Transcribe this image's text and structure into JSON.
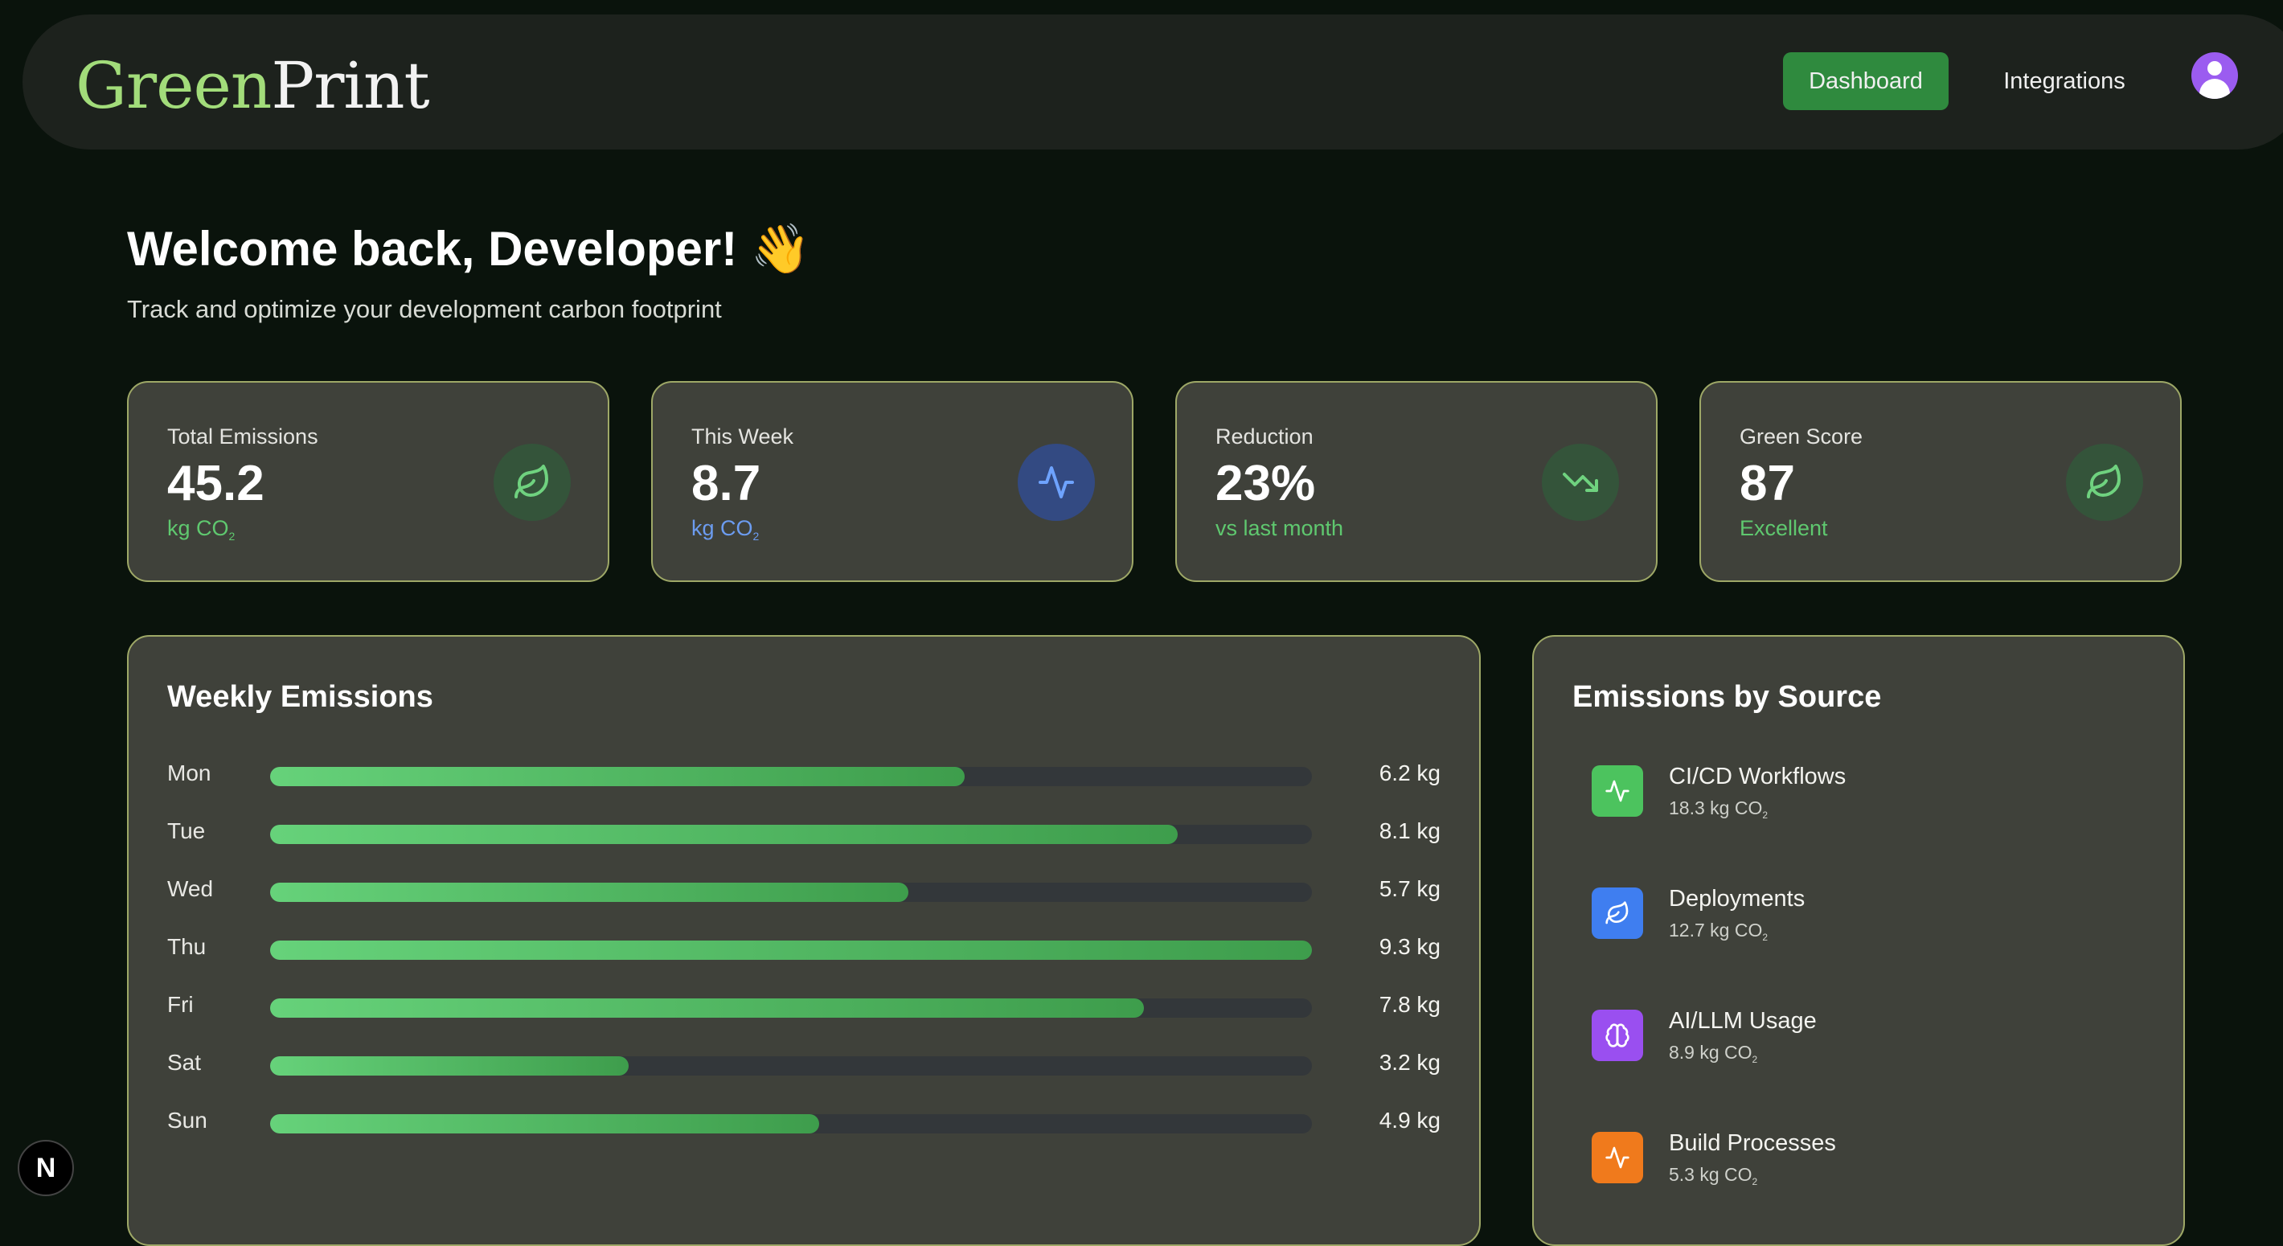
{
  "brand": {
    "part1": "Green",
    "part2": "Print"
  },
  "nav": {
    "dashboard": "Dashboard",
    "integrations": "Integrations"
  },
  "welcome": {
    "title": "Welcome back, Developer! 👋",
    "subtitle": "Track and optimize your development carbon footprint"
  },
  "stats": [
    {
      "label": "Total Emissions",
      "value": "45.2",
      "unit": "kg CO",
      "unit_sub": "2",
      "unit_color": "#5fc86f",
      "icon": "leaf-icon",
      "icon_bg": "#34543a",
      "icon_color": "#6fd27f"
    },
    {
      "label": "This Week",
      "value": "8.7",
      "unit": "kg CO",
      "unit_sub": "2",
      "unit_color": "#6c9cf0",
      "icon": "activity-icon",
      "icon_bg": "#334a82",
      "icon_color": "#6ea3ff"
    },
    {
      "label": "Reduction",
      "value": "23%",
      "unit": "vs last month",
      "unit_sub": "",
      "unit_color": "#5fc86f",
      "icon": "trending-down-icon",
      "icon_bg": "#34543a",
      "icon_color": "#6fd27f"
    },
    {
      "label": "Green Score",
      "value": "87",
      "unit": "Excellent",
      "unit_sub": "",
      "unit_color": "#5fc86f",
      "icon": "leaf-icon",
      "icon_bg": "#34543a",
      "icon_color": "#6fd27f"
    }
  ],
  "weekly": {
    "title": "Weekly Emissions",
    "max": 9.3,
    "days": [
      {
        "day": "Mon",
        "value": 6.2,
        "label": "6.2 kg"
      },
      {
        "day": "Tue",
        "value": 8.1,
        "label": "8.1 kg"
      },
      {
        "day": "Wed",
        "value": 5.7,
        "label": "5.7 kg"
      },
      {
        "day": "Thu",
        "value": 9.3,
        "label": "9.3 kg"
      },
      {
        "day": "Fri",
        "value": 7.8,
        "label": "7.8 kg"
      },
      {
        "day": "Sat",
        "value": 3.2,
        "label": "3.2 kg"
      },
      {
        "day": "Sun",
        "value": 4.9,
        "label": "4.9 kg"
      }
    ]
  },
  "sources": {
    "title": "Emissions by Source",
    "items": [
      {
        "name": "CI/CD Workflows",
        "amount": "18.3 kg CO",
        "sub": "2",
        "color": "#4cc35e",
        "icon": "activity-icon"
      },
      {
        "name": "Deployments",
        "amount": "12.7 kg CO",
        "sub": "2",
        "color": "#3f7ef0",
        "icon": "leaf-icon"
      },
      {
        "name": "AI/LLM Usage",
        "amount": "8.9 kg CO",
        "sub": "2",
        "color": "#9a4ff0",
        "icon": "brain-icon"
      },
      {
        "name": "Build Processes",
        "amount": "5.3 kg CO",
        "sub": "2",
        "color": "#f07a1c",
        "icon": "activity-icon"
      }
    ]
  },
  "badge": "N"
}
